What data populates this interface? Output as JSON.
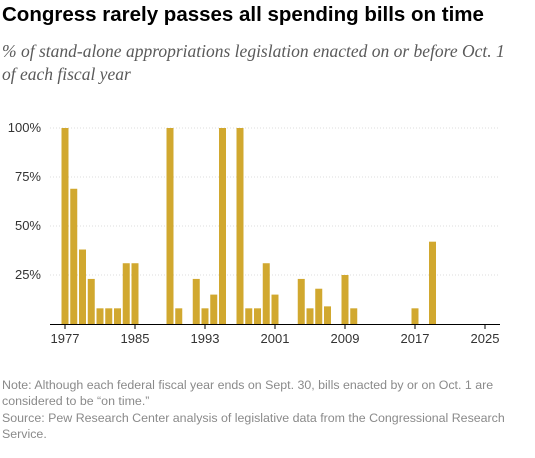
{
  "title": "Congress rarely passes all spending bills on time",
  "subtitle": "% of stand-alone appropriations legislation enacted on or before Oct. 1 of each fiscal year",
  "note_text": "Note: Although each federal fiscal year ends on Sept. 30, bills enacted by or on Oct. 1 are considered to be “on time.”",
  "source_text": "Source: Pew Research Center analysis of legislative data from the Congressional Research Service.",
  "colors": {
    "bar": "#d1a82f",
    "axis": "#000000",
    "grid": "#dddddd",
    "tick_text": "#333333"
  },
  "chart_data": {
    "type": "bar",
    "title": "Congress rarely passes all spending bills on time",
    "xlabel": "",
    "ylabel": "",
    "ylim": [
      0,
      100
    ],
    "y_ticks": [
      25,
      50,
      75,
      100
    ],
    "y_tick_labels": [
      "25%",
      "50%",
      "75%",
      "100%"
    ],
    "x_ticks": [
      1977,
      1985,
      1993,
      2001,
      2009,
      2017,
      2025
    ],
    "x_tick_labels": [
      "1977",
      "1985",
      "1993",
      "2001",
      "2009",
      "2017",
      "2025"
    ],
    "xlim": [
      1977,
      2025
    ],
    "grid": true,
    "legend": "none",
    "x": [
      1977,
      1978,
      1979,
      1980,
      1981,
      1982,
      1983,
      1984,
      1985,
      1986,
      1987,
      1988,
      1989,
      1990,
      1991,
      1992,
      1993,
      1994,
      1995,
      1996,
      1997,
      1998,
      1999,
      2000,
      2001,
      2002,
      2003,
      2004,
      2005,
      2006,
      2007,
      2008,
      2009,
      2010,
      2011,
      2012,
      2013,
      2014,
      2015,
      2016,
      2017,
      2018,
      2019,
      2020,
      2021,
      2022,
      2023,
      2024,
      2025
    ],
    "values": [
      100,
      69,
      38,
      23,
      8,
      8,
      8,
      31,
      31,
      0,
      0,
      0,
      100,
      8,
      0,
      23,
      8,
      15,
      100,
      0,
      100,
      8,
      8,
      31,
      15,
      0,
      0,
      23,
      8,
      18,
      9,
      0,
      25,
      8,
      0,
      0,
      0,
      0,
      0,
      0,
      8,
      0,
      42,
      0,
      0,
      0,
      0,
      0,
      0
    ]
  }
}
